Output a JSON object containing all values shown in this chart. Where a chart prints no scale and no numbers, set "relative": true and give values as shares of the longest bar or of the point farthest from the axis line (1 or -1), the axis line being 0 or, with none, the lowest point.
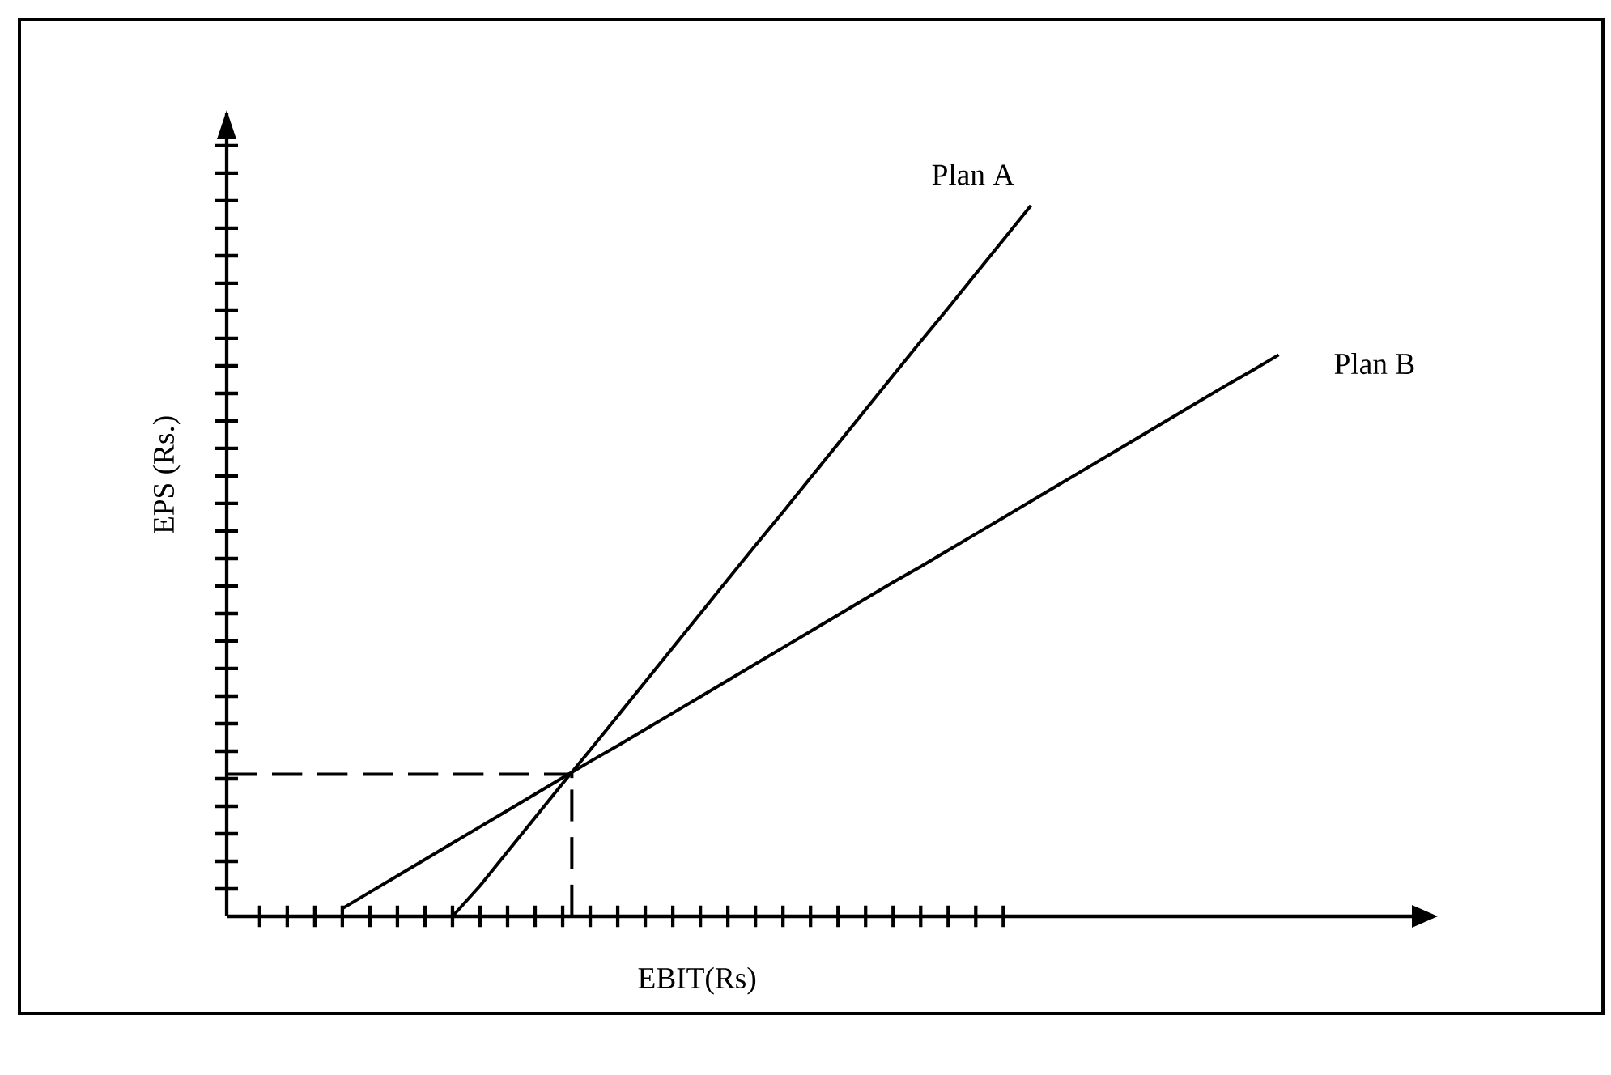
{
  "chart_data": {
    "type": "line",
    "relative": true,
    "xlabel": "EBIT(Rs)",
    "ylabel": "EPS (Rs.)",
    "legend": false,
    "grid": false,
    "marker": "none",
    "line_style": "solid",
    "categories": [
      null,
      null,
      null,
      null,
      null,
      null,
      null,
      null,
      null,
      null,
      null,
      null,
      null,
      null,
      null,
      null,
      null,
      null,
      null,
      null,
      null,
      null,
      null,
      null,
      null,
      null,
      null,
      null,
      null,
      null,
      null,
      null,
      null,
      null,
      null,
      null,
      null,
      null,
      null,
      null,
      null,
      null,
      null,
      null
    ],
    "series": [
      {
        "name": "Plan A",
        "color": "#000000",
        "values": [
          null,
          null,
          null,
          null,
          null,
          null,
          null,
          null,
          0,
          0.043,
          0.091,
          0.139,
          0.187,
          0.234,
          0.282,
          0.33,
          0.378,
          0.426,
          0.474,
          0.522,
          0.569,
          0.617,
          0.665,
          0.713,
          0.761,
          0.809,
          0.856,
          0.904,
          0.952,
          1,
          null,
          null,
          null,
          null,
          null,
          null,
          null,
          null,
          null,
          null,
          null,
          null,
          null,
          null
        ]
      },
      {
        "name": "Plan B",
        "color": "#000000",
        "values": [
          null,
          null,
          null,
          null,
          0.011,
          0.034,
          0.057,
          0.08,
          0.103,
          0.126,
          0.149,
          0.172,
          0.195,
          0.218,
          0.24,
          0.263,
          0.286,
          0.309,
          0.332,
          0.355,
          0.378,
          0.401,
          0.424,
          0.447,
          0.47,
          0.492,
          0.515,
          0.538,
          0.561,
          0.584,
          0.607,
          0.63,
          0.653,
          0.676,
          0.699,
          0.722,
          0.745,
          0.767,
          0.79,
          null,
          null,
          null,
          null,
          null
        ]
      }
    ],
    "ref_lines": [
      {
        "axis": "y",
        "value": 0.2,
        "line_style": "dashed",
        "color": "#000000"
      }
    ]
  }
}
